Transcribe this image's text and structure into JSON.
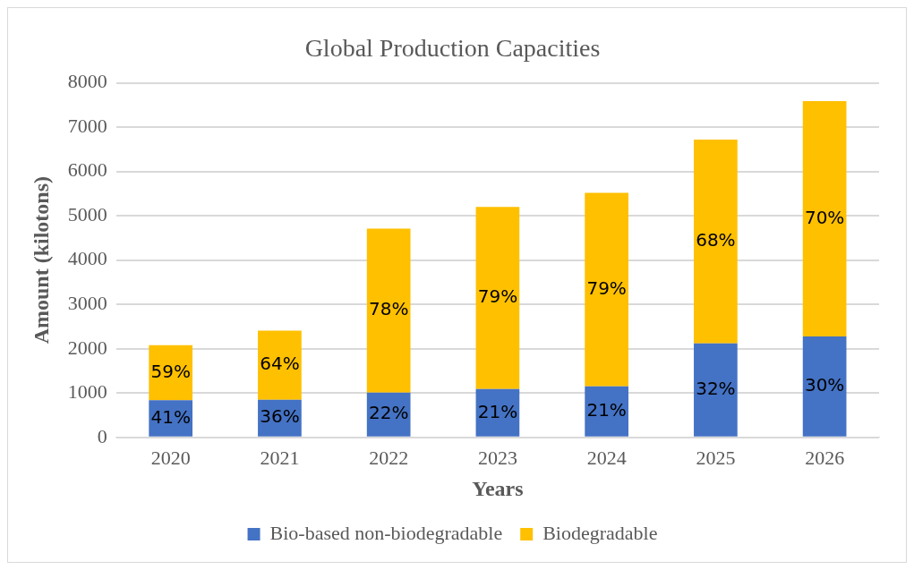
{
  "chart_data": {
    "type": "bar",
    "title": "Global Production Capacities",
    "xlabel": "Years",
    "ylabel": "Amount (kilotons)",
    "categories": [
      "2020",
      "2021",
      "2022",
      "2023",
      "2024",
      "2025",
      "2026"
    ],
    "stacked": true,
    "ylim": [
      0,
      8000
    ],
    "yticks": [
      0,
      1000,
      2000,
      3000,
      4000,
      5000,
      6000,
      7000,
      8000
    ],
    "grid": "y",
    "legend": "bottom",
    "series": [
      {
        "name": "Bio-based non-biodegradable",
        "color": "#4472c4",
        "values": [
          840,
          850,
          1010,
          1090,
          1150,
          2120,
          2280
        ]
      },
      {
        "name": "Biodegradable",
        "color": "#ffc000",
        "values": [
          1240,
          1560,
          3700,
          4110,
          4370,
          4600,
          5310
        ]
      }
    ],
    "annotations": [
      "41%",
      "59%",
      "36%",
      "64%",
      "22%",
      "78%",
      "21%",
      "79%",
      "21%",
      "79%",
      "32%",
      "68%",
      "30%",
      "70%"
    ]
  }
}
